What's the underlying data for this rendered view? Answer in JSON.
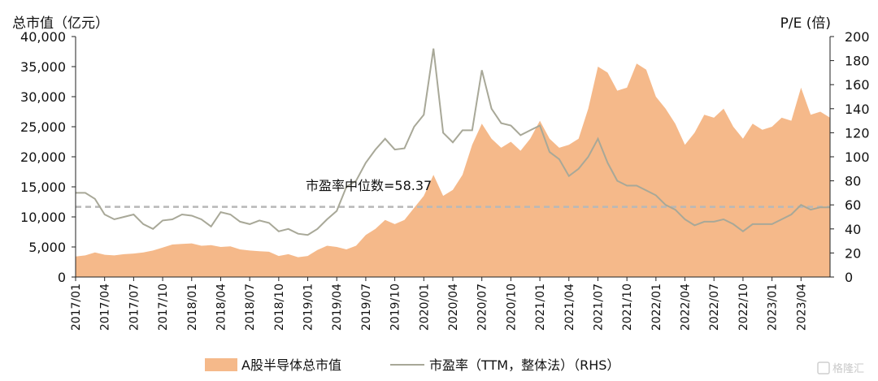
{
  "chart_data": {
    "type": "area",
    "left_axis_title": "总市值（亿元）",
    "right_axis_title": "P/E (倍)",
    "y_left_ticks": [
      "0",
      "5,000",
      "10,000",
      "15,000",
      "20,000",
      "25,000",
      "30,000",
      "35,000",
      "40,000"
    ],
    "y_left_lim": [
      0,
      40000
    ],
    "y_right_ticks": [
      "0",
      "20",
      "40",
      "60",
      "80",
      "100",
      "120",
      "140",
      "160",
      "180",
      "200"
    ],
    "y_right_lim": [
      0,
      200
    ],
    "x_ticks": [
      "2017/01",
      "2017/04",
      "2017/07",
      "2017/10",
      "2018/01",
      "2018/04",
      "2018/07",
      "2018/10",
      "2019/01",
      "2019/04",
      "2019/07",
      "2019/10",
      "2020/01",
      "2020/04",
      "2020/07",
      "2020/10",
      "2021/01",
      "2021/04",
      "2021/07",
      "2021/10",
      "2022/01",
      "2022/04",
      "2022/07",
      "2022/10",
      "2023/01",
      "2023/04"
    ],
    "x_range": [
      "2017/01",
      "2023/07"
    ],
    "median_pe": 58.37,
    "annotation": "市盈率中位数=58.37",
    "series": [
      {
        "name": "A股半导体总市值",
        "axis": "left",
        "color": "#f5b98a",
        "points": [
          [
            "2017/01",
            3400
          ],
          [
            "2017/02",
            3600
          ],
          [
            "2017/03",
            4100
          ],
          [
            "2017/04",
            3700
          ],
          [
            "2017/05",
            3600
          ],
          [
            "2017/06",
            3800
          ],
          [
            "2017/07",
            3900
          ],
          [
            "2017/08",
            4100
          ],
          [
            "2017/09",
            4400
          ],
          [
            "2017/10",
            4900
          ],
          [
            "2017/11",
            5400
          ],
          [
            "2017/12",
            5500
          ],
          [
            "2018/01",
            5600
          ],
          [
            "2018/02",
            5200
          ],
          [
            "2018/03",
            5300
          ],
          [
            "2018/04",
            5000
          ],
          [
            "2018/05",
            5100
          ],
          [
            "2018/06",
            4600
          ],
          [
            "2018/07",
            4400
          ],
          [
            "2018/08",
            4300
          ],
          [
            "2018/09",
            4200
          ],
          [
            "2018/10",
            3500
          ],
          [
            "2018/11",
            3800
          ],
          [
            "2018/12",
            3300
          ],
          [
            "2019/01",
            3500
          ],
          [
            "2019/02",
            4500
          ],
          [
            "2019/03",
            5200
          ],
          [
            "2019/04",
            5000
          ],
          [
            "2019/05",
            4600
          ],
          [
            "2019/06",
            5200
          ],
          [
            "2019/07",
            7000
          ],
          [
            "2019/08",
            8000
          ],
          [
            "2019/09",
            9500
          ],
          [
            "2019/10",
            8800
          ],
          [
            "2019/11",
            9500
          ],
          [
            "2019/12",
            11500
          ],
          [
            "2020/01",
            13500
          ],
          [
            "2020/02",
            17000
          ],
          [
            "2020/03",
            13500
          ],
          [
            "2020/04",
            14500
          ],
          [
            "2020/05",
            17000
          ],
          [
            "2020/06",
            22000
          ],
          [
            "2020/07",
            25500
          ],
          [
            "2020/08",
            23000
          ],
          [
            "2020/09",
            21500
          ],
          [
            "2020/10",
            22500
          ],
          [
            "2020/11",
            21000
          ],
          [
            "2020/12",
            23000
          ],
          [
            "2021/01",
            26000
          ],
          [
            "2021/02",
            23000
          ],
          [
            "2021/03",
            21500
          ],
          [
            "2021/04",
            22000
          ],
          [
            "2021/05",
            23000
          ],
          [
            "2021/06",
            28000
          ],
          [
            "2021/07",
            35000
          ],
          [
            "2021/08",
            34000
          ],
          [
            "2021/09",
            31000
          ],
          [
            "2021/10",
            31500
          ],
          [
            "2021/11",
            35500
          ],
          [
            "2021/12",
            34500
          ],
          [
            "2022/01",
            30000
          ],
          [
            "2022/02",
            28000
          ],
          [
            "2022/03",
            25500
          ],
          [
            "2022/04",
            22000
          ],
          [
            "2022/05",
            24000
          ],
          [
            "2022/06",
            27000
          ],
          [
            "2022/07",
            26500
          ],
          [
            "2022/08",
            28000
          ],
          [
            "2022/09",
            25000
          ],
          [
            "2022/10",
            23000
          ],
          [
            "2022/11",
            25500
          ],
          [
            "2022/12",
            24500
          ],
          [
            "2023/01",
            25000
          ],
          [
            "2023/02",
            26500
          ],
          [
            "2023/03",
            26000
          ],
          [
            "2023/04",
            31500
          ],
          [
            "2023/05",
            27000
          ],
          [
            "2023/06",
            27500
          ],
          [
            "2023/07",
            26500
          ]
        ]
      },
      {
        "name": "市盈率（TTM，整体法）（RHS）",
        "axis": "right",
        "color": "#a8a898",
        "points": [
          [
            "2017/01",
            70
          ],
          [
            "2017/02",
            70
          ],
          [
            "2017/03",
            65
          ],
          [
            "2017/04",
            52
          ],
          [
            "2017/05",
            48
          ],
          [
            "2017/06",
            50
          ],
          [
            "2017/07",
            52
          ],
          [
            "2017/08",
            44
          ],
          [
            "2017/09",
            40
          ],
          [
            "2017/10",
            47
          ],
          [
            "2017/11",
            48
          ],
          [
            "2017/12",
            52
          ],
          [
            "2018/01",
            51
          ],
          [
            "2018/02",
            48
          ],
          [
            "2018/03",
            42
          ],
          [
            "2018/04",
            54
          ],
          [
            "2018/05",
            52
          ],
          [
            "2018/06",
            46
          ],
          [
            "2018/07",
            44
          ],
          [
            "2018/08",
            47
          ],
          [
            "2018/09",
            45
          ],
          [
            "2018/10",
            38
          ],
          [
            "2018/11",
            40
          ],
          [
            "2018/12",
            36
          ],
          [
            "2019/01",
            35
          ],
          [
            "2019/02",
            40
          ],
          [
            "2019/03",
            48
          ],
          [
            "2019/04",
            55
          ],
          [
            "2019/05",
            75
          ],
          [
            "2019/06",
            80
          ],
          [
            "2019/07",
            95
          ],
          [
            "2019/08",
            106
          ],
          [
            "2019/09",
            115
          ],
          [
            "2019/10",
            106
          ],
          [
            "2019/11",
            107
          ],
          [
            "2019/12",
            125
          ],
          [
            "2020/01",
            135
          ],
          [
            "2020/02",
            190
          ],
          [
            "2020/03",
            120
          ],
          [
            "2020/04",
            112
          ],
          [
            "2020/05",
            122
          ],
          [
            "2020/06",
            122
          ],
          [
            "2020/07",
            172
          ],
          [
            "2020/08",
            140
          ],
          [
            "2020/09",
            128
          ],
          [
            "2020/10",
            126
          ],
          [
            "2020/11",
            118
          ],
          [
            "2020/12",
            122
          ],
          [
            "2021/01",
            126
          ],
          [
            "2021/02",
            104
          ],
          [
            "2021/03",
            98
          ],
          [
            "2021/04",
            84
          ],
          [
            "2021/05",
            90
          ],
          [
            "2021/06",
            100
          ],
          [
            "2021/07",
            115
          ],
          [
            "2021/08",
            95
          ],
          [
            "2021/09",
            80
          ],
          [
            "2021/10",
            76
          ],
          [
            "2021/11",
            76
          ],
          [
            "2021/12",
            72
          ],
          [
            "2022/01",
            68
          ],
          [
            "2022/02",
            60
          ],
          [
            "2022/03",
            56
          ],
          [
            "2022/04",
            48
          ],
          [
            "2022/05",
            43
          ],
          [
            "2022/06",
            46
          ],
          [
            "2022/07",
            46
          ],
          [
            "2022/08",
            48
          ],
          [
            "2022/09",
            44
          ],
          [
            "2022/10",
            38
          ],
          [
            "2022/11",
            44
          ],
          [
            "2022/12",
            44
          ],
          [
            "2023/01",
            44
          ],
          [
            "2023/02",
            48
          ],
          [
            "2023/03",
            52
          ],
          [
            "2023/04",
            60
          ],
          [
            "2023/05",
            56
          ],
          [
            "2023/06",
            58
          ],
          [
            "2023/07",
            58
          ]
        ]
      }
    ],
    "legend_position": "bottom",
    "grid": false
  },
  "watermark": "格隆汇"
}
